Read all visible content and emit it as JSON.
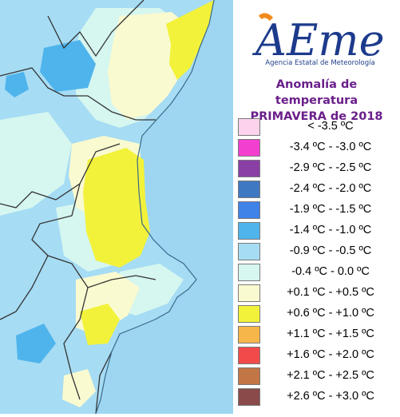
{
  "agency": {
    "logo_text": "AEmet",
    "name": "Agencia Estatal de Meteorología"
  },
  "title": {
    "line1": "Anomalía de temperatura",
    "line2": "PRIMAVERA de 2018"
  },
  "legend": {
    "items": [
      {
        "label": "< -3.5 ºC",
        "color": "#fcd2ec"
      },
      {
        "label": "-3.4 ºC - -3.0 ºC",
        "color": "#f23fcf"
      },
      {
        "label": "-2.9 ºC - -2.5 ºC",
        "color": "#8a3fa6"
      },
      {
        "label": "-2.4 ºC - -2.0 ºC",
        "color": "#3f78c2"
      },
      {
        "label": "-1.9 ºC - -1.5 ºC",
        "color": "#3f82e8"
      },
      {
        "label": "-1.4 ºC - -1.0 ºC",
        "color": "#4fb4ec"
      },
      {
        "label": "-0.9 ºC - -0.5 ºC",
        "color": "#a6dcf4"
      },
      {
        "label": "-0.4 ºC - 0.0 ºC",
        "color": "#d6f6f0"
      },
      {
        "label": "+0.1 ºC - +0.5 ºC",
        "color": "#fafad0"
      },
      {
        "label": "+0.6 ºC - +1.0 ºC",
        "color": "#f2f23a"
      },
      {
        "label": "+1.1 ºC - +1.5 ºC",
        "color": "#f7b64a"
      },
      {
        "label": "+1.6 ºC - +2.0 ºC",
        "color": "#f24a4a"
      },
      {
        "label": "+2.1 ºC - +2.5 ºC",
        "color": "#c27646"
      },
      {
        "label": "+2.6 ºC - +3.0 ºC",
        "color": "#8a4a4a"
      }
    ]
  },
  "map": {
    "sea_color": "#9ed6f2",
    "land_colors": {
      "anom_cool": "#a6dcf4",
      "anom_neutral": "#d6f6f0",
      "anom_warm_slight": "#fafad0",
      "anom_warm": "#f2f23a",
      "anom_cold": "#4fb4ec"
    }
  }
}
